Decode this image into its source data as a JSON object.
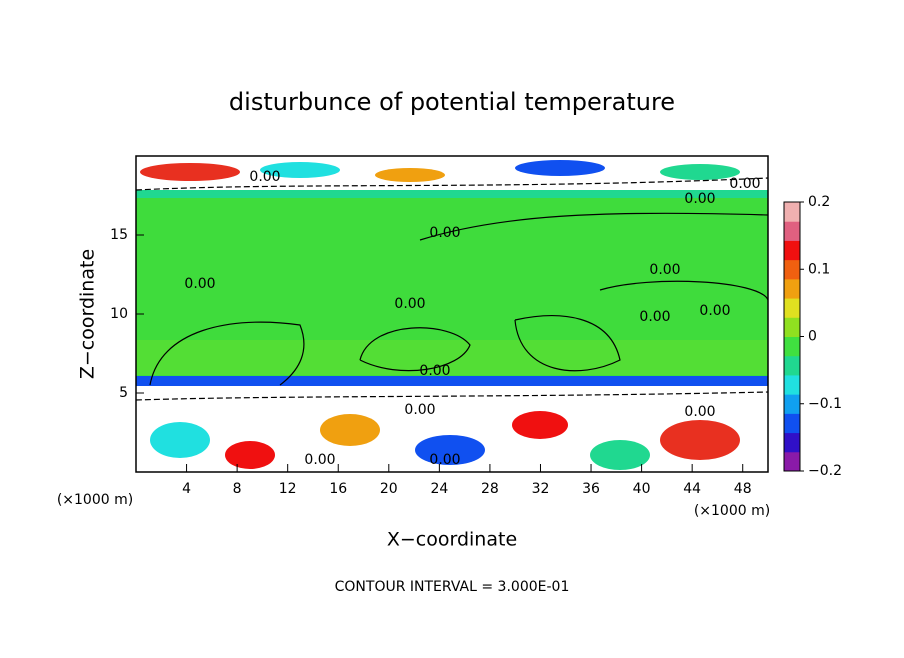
{
  "chart_data": {
    "type": "contour",
    "title": "disturbunce of potential temperature",
    "x_label": "X−coordinate",
    "y_label": "Z−coordinate",
    "x_unit": "(×1000 m)",
    "footer": "CONTOUR INTERVAL = 3.000E-01",
    "xlim": [
      0,
      50
    ],
    "xticks": [
      4,
      8,
      12,
      16,
      20,
      24,
      28,
      32,
      36,
      40,
      44,
      48
    ],
    "ylim": [
      0,
      20
    ],
    "yticks": [
      5,
      10,
      15
    ],
    "clim": [
      -0.2,
      0.2
    ],
    "cticks": [
      {
        "value": 0.2,
        "label": "0.2"
      },
      {
        "value": 0.1,
        "label": "0.1"
      },
      0,
      {
        "value": -0.1,
        "label": "−0.1"
      },
      {
        "value": -0.2,
        "label": "−0.2"
      }
    ],
    "colorbar_colors": [
      "#8a1aa8",
      "#3010c8",
      "#1050f0",
      "#10a0f0",
      "#20e0e0",
      "#20d890",
      "#40e040",
      "#90e020",
      "#e0e020",
      "#f0a010",
      "#f06010",
      "#f01010",
      "#e06080",
      "#f0b0b0"
    ],
    "contour_labels": [
      "0.00",
      "0.00",
      "0.00",
      "0.00",
      "0.00",
      "0.00",
      "0.00",
      "0.00",
      "0.00",
      "0.00",
      "0.00",
      "0.00",
      "0.00",
      "0.00"
    ]
  }
}
